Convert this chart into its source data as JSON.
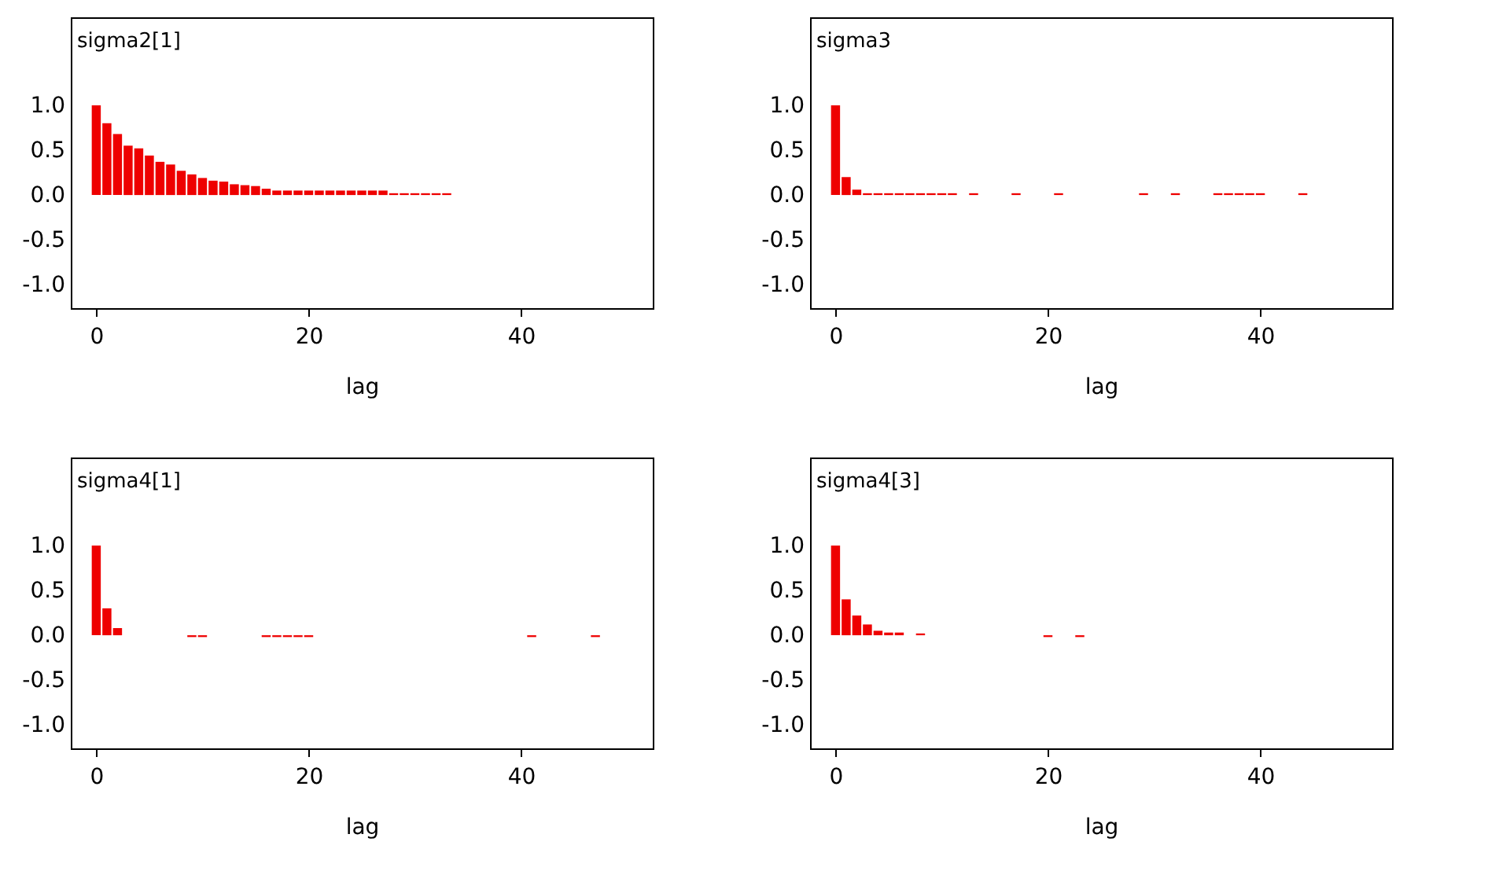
{
  "chart_data": [
    {
      "type": "bar",
      "title": "sigma2[1]",
      "xlabel": "lag",
      "xlim": [
        -2.4,
        52.4
      ],
      "ylim": [
        -1.26,
        1.98
      ],
      "xticks": [
        0,
        20,
        40
      ],
      "yticks": [
        {
          "value": -1,
          "label": "-1.0"
        },
        {
          "value": -0.5,
          "label": "-0.5"
        },
        {
          "value": 0,
          "label": "0.0"
        },
        {
          "value": 0.5,
          "label": "0.5"
        },
        {
          "value": 1,
          "label": "1.0"
        }
      ],
      "grid": false,
      "x": [
        0,
        1,
        2,
        3,
        4,
        5,
        6,
        7,
        8,
        9,
        10,
        11,
        12,
        13,
        14,
        15,
        16,
        17,
        18,
        19,
        20,
        21,
        22,
        23,
        24,
        25,
        26,
        27,
        28,
        29,
        30,
        31,
        32,
        33
      ],
      "series": [
        {
          "color": "#ee0000",
          "values": [
            1.0,
            0.8,
            0.68,
            0.55,
            0.52,
            0.44,
            0.37,
            0.34,
            0.27,
            0.23,
            0.19,
            0.16,
            0.15,
            0.12,
            0.11,
            0.1,
            0.07,
            0.05,
            0.05,
            0.05,
            0.05,
            0.05,
            0.05,
            0.05,
            0.05,
            0.05,
            0.05,
            0.05,
            0.02,
            0.02,
            0.02,
            0.02,
            0.02,
            0.02
          ]
        }
      ]
    },
    {
      "type": "bar",
      "title": "sigma3",
      "xlabel": "lag",
      "xlim": [
        -2.4,
        52.4
      ],
      "ylim": [
        -1.26,
        1.98
      ],
      "xticks": [
        0,
        20,
        40
      ],
      "yticks": [
        {
          "value": -1,
          "label": "-1.0"
        },
        {
          "value": -0.5,
          "label": "-0.5"
        },
        {
          "value": 0,
          "label": "0.0"
        },
        {
          "value": 0.5,
          "label": "0.5"
        },
        {
          "value": 1,
          "label": "1.0"
        }
      ],
      "grid": false,
      "x": [
        0,
        1,
        2,
        3,
        4,
        5,
        6,
        7,
        8,
        9,
        10,
        11,
        13,
        17,
        21,
        29,
        32,
        36,
        37,
        38,
        39,
        40,
        44
      ],
      "series": [
        {
          "color": "#ee0000",
          "values": [
            1.0,
            0.2,
            0.06,
            0.02,
            0.02,
            0.02,
            0.02,
            0.02,
            0.02,
            0.02,
            0.02,
            0.02,
            0.02,
            0.02,
            0.02,
            0.02,
            0.02,
            0.02,
            0.02,
            0.02,
            0.02,
            0.02,
            0.02
          ]
        }
      ]
    },
    {
      "type": "bar",
      "title": "sigma4[1]",
      "xlabel": "lag",
      "xlim": [
        -2.4,
        52.4
      ],
      "ylim": [
        -1.26,
        1.98
      ],
      "xticks": [
        0,
        20,
        40
      ],
      "yticks": [
        {
          "value": -1,
          "label": "-1.0"
        },
        {
          "value": -0.5,
          "label": "-0.5"
        },
        {
          "value": 0,
          "label": "0.0"
        },
        {
          "value": 0.5,
          "label": "0.5"
        },
        {
          "value": 1,
          "label": "1.0"
        }
      ],
      "grid": false,
      "x": [
        0,
        1,
        2,
        9,
        10,
        16,
        17,
        18,
        19,
        20,
        41,
        47
      ],
      "series": [
        {
          "color": "#ee0000",
          "values": [
            1.0,
            0.3,
            0.08,
            -0.02,
            -0.02,
            -0.02,
            -0.02,
            -0.02,
            -0.02,
            -0.02,
            -0.02,
            -0.02
          ]
        }
      ]
    },
    {
      "type": "bar",
      "title": "sigma4[3]",
      "xlabel": "lag",
      "xlim": [
        -2.4,
        52.4
      ],
      "ylim": [
        -1.26,
        1.98
      ],
      "xticks": [
        0,
        20,
        40
      ],
      "yticks": [
        {
          "value": -1,
          "label": "-1.0"
        },
        {
          "value": -0.5,
          "label": "-0.5"
        },
        {
          "value": 0,
          "label": "0.0"
        },
        {
          "value": 0.5,
          "label": "0.5"
        },
        {
          "value": 1,
          "label": "1.0"
        }
      ],
      "grid": false,
      "x": [
        0,
        1,
        2,
        3,
        4,
        5,
        6,
        8,
        20,
        23
      ],
      "series": [
        {
          "color": "#ee0000",
          "values": [
            1.0,
            0.4,
            0.22,
            0.12,
            0.05,
            0.03,
            0.03,
            0.02,
            -0.02,
            -0.02
          ]
        }
      ]
    }
  ]
}
